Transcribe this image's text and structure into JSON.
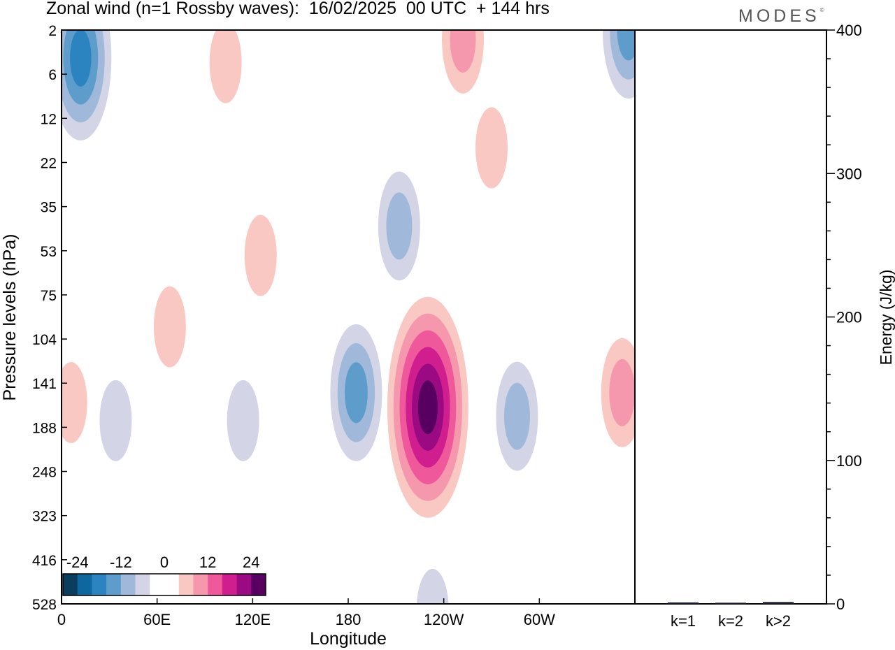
{
  "title": "Zonal wind (n=1 Rossby waves):  16/02/2025  00 UTC  + 144 hrs",
  "brand": "MODES",
  "brand_mark": "©",
  "colors": {
    "neg": [
      "#0b3d5c",
      "#0e679f",
      "#2b84c0",
      "#5e9dcb",
      "#a0b8d9",
      "#d3d5e6"
    ],
    "zero": "#ffffff",
    "pos": [
      "#f9c8c3",
      "#f598ad",
      "#f0589c",
      "#d11e8e",
      "#9b0a82",
      "#570062"
    ],
    "axis": "#000000"
  },
  "chart_data": [
    {
      "type": "heatmap",
      "title": "Zonal wind (n=1 Rossby waves):  16/02/2025  00 UTC  + 144 hrs",
      "xlabel": "Longitude",
      "ylabel": "Pressure levels (hPa)",
      "x_ticks": [
        {
          "deg": 0,
          "label": "0"
        },
        {
          "deg": 60,
          "label": "60E"
        },
        {
          "deg": 120,
          "label": "120E"
        },
        {
          "deg": 180,
          "label": "180"
        },
        {
          "deg": 240,
          "label": "120W"
        },
        {
          "deg": 300,
          "label": "60W"
        }
      ],
      "xlim": [
        0,
        360
      ],
      "y_levels": [
        "2",
        "6",
        "12",
        "22",
        "35",
        "53",
        "75",
        "104",
        "141",
        "188",
        "248",
        "323",
        "416",
        "528"
      ],
      "colorbar": {
        "labels": [
          "-24",
          "-12",
          "0",
          "12",
          "24"
        ],
        "label_bins": [
          1,
          4,
          7,
          10,
          13
        ],
        "bins": 14
      },
      "features": [
        {
          "sign": "neg",
          "lon": 12,
          "level": 4,
          "peak": 4
        },
        {
          "sign": "pos",
          "lon": 103,
          "level": 4.5,
          "peak": 1
        },
        {
          "sign": "pos",
          "lon": 252,
          "level": 2.5,
          "peak": 2
        },
        {
          "sign": "neg",
          "lon": 356,
          "level": 2,
          "peak": 3
        },
        {
          "sign": "pos",
          "lon": 270,
          "level": 18,
          "peak": 1
        },
        {
          "sign": "neg",
          "lon": 212,
          "level": 42,
          "peak": 2
        },
        {
          "sign": "pos",
          "lon": 125,
          "level": 55,
          "peak": 1
        },
        {
          "sign": "pos",
          "lon": 68,
          "level": 95,
          "peak": 1
        },
        {
          "sign": "neg",
          "lon": 185,
          "level": 150,
          "peak": 3
        },
        {
          "sign": "pos",
          "lon": 230,
          "level": 165,
          "peak": 6
        },
        {
          "sign": "neg",
          "lon": 34,
          "level": 180,
          "peak": 1
        },
        {
          "sign": "neg",
          "lon": 114,
          "level": 180,
          "peak": 1
        },
        {
          "sign": "neg",
          "lon": 286,
          "level": 175,
          "peak": 2
        },
        {
          "sign": "pos",
          "lon": 352,
          "level": 150,
          "peak": 2
        },
        {
          "sign": "pos",
          "lon": 6,
          "level": 160,
          "peak": 1
        },
        {
          "sign": "neg",
          "lon": 233,
          "level": 545,
          "peak": 1
        }
      ]
    },
    {
      "type": "bar",
      "ylabel": "Energy (J/kg)",
      "categories": [
        "k=1",
        "k=2",
        "k>2"
      ],
      "values": [
        0.5,
        0.3,
        0.8
      ],
      "ylim": [
        0,
        400
      ],
      "y_ticks": [
        0,
        100,
        200,
        300,
        400
      ],
      "y_minor_step": 20
    }
  ]
}
